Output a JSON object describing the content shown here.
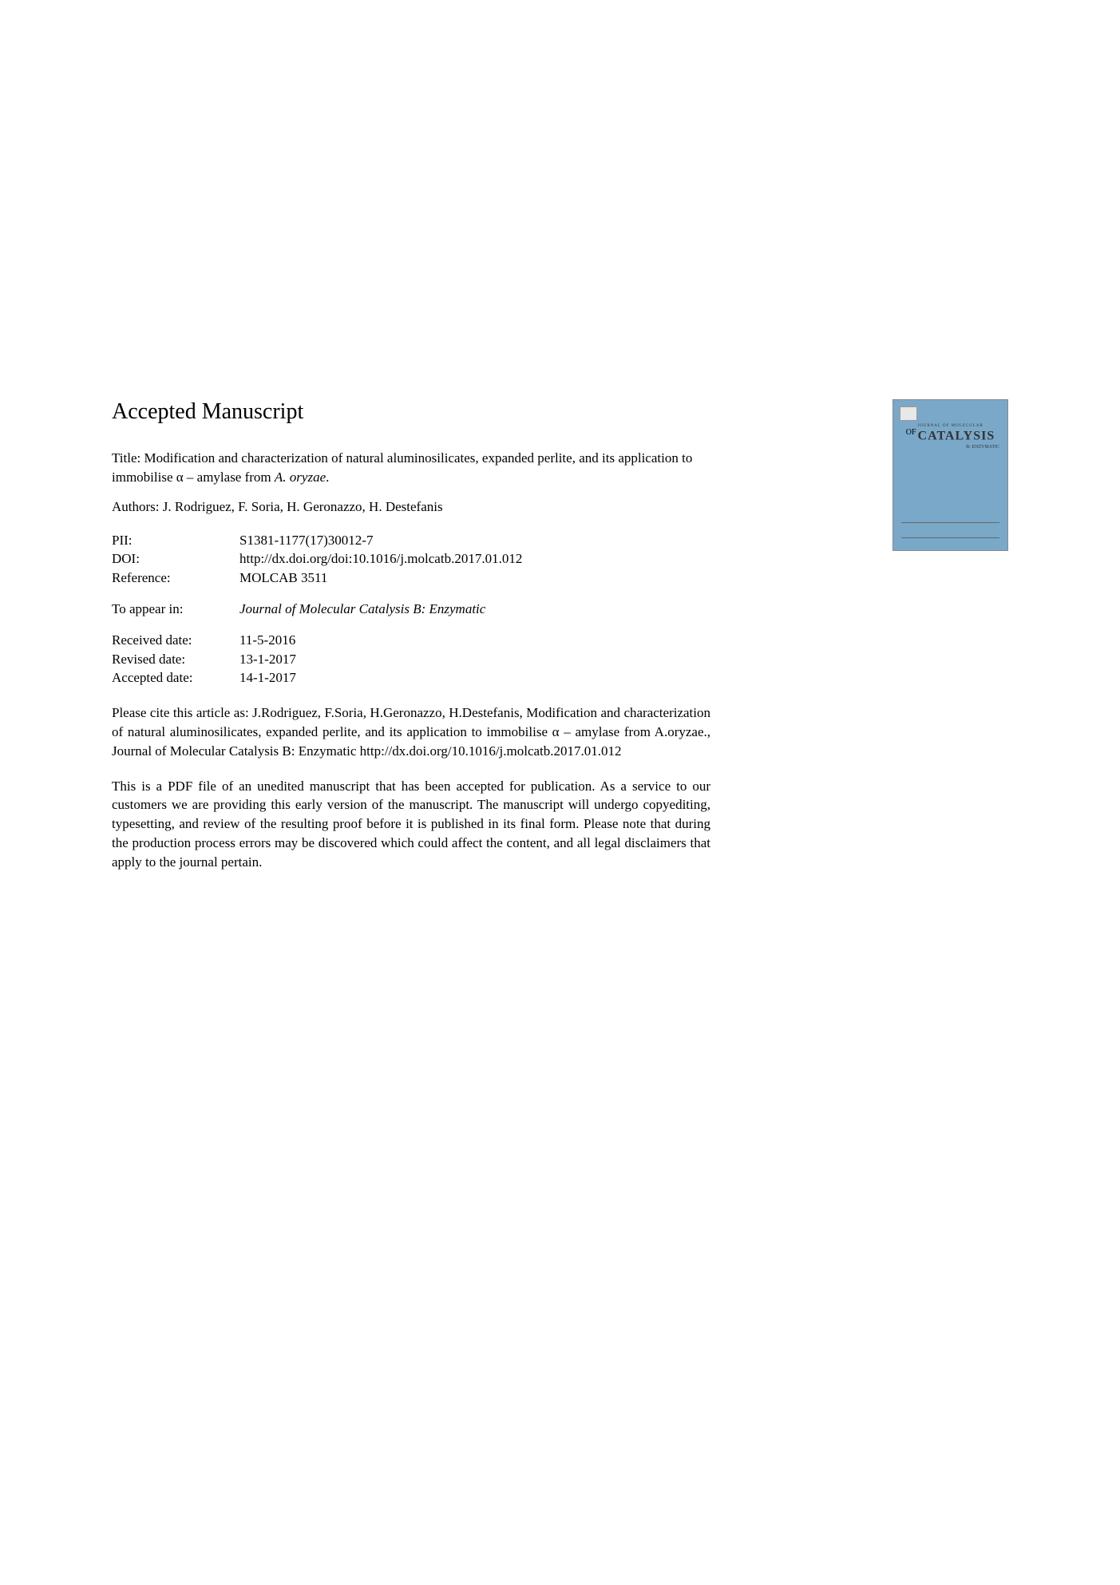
{
  "heading": "Accepted Manuscript",
  "title": {
    "prefix": "Title: Modification and characterization of natural aluminosilicates, expanded perlite, and its application to immobilise α – amylase from ",
    "species": "A. oryzae",
    "suffix": "."
  },
  "authors": "Authors: J. Rodriguez, F. Soria, H. Geronazzo, H. Destefanis",
  "metadata": {
    "pii": {
      "label": "PII:",
      "value": "S1381-1177(17)30012-7"
    },
    "doi": {
      "label": "DOI:",
      "value": "http://dx.doi.org/doi:10.1016/j.molcatb.2017.01.012"
    },
    "reference": {
      "label": "Reference:",
      "value": "MOLCAB 3511"
    },
    "appear": {
      "label": "To appear in:",
      "value": "Journal of Molecular Catalysis B: Enzymatic"
    },
    "received": {
      "label": "Received date:",
      "value": "11-5-2016"
    },
    "revised": {
      "label": "Revised date:",
      "value": "13-1-2017"
    },
    "accepted": {
      "label": "Accepted date:",
      "value": "14-1-2017"
    }
  },
  "citation": "Please cite this article as: J.Rodriguez, F.Soria, H.Geronazzo, H.Destefanis, Modification and characterization of natural aluminosilicates, expanded perlite, and its application to immobilise α – amylase from A.oryzae., Journal of Molecular Catalysis B: Enzymatic http://dx.doi.org/10.1016/j.molcatb.2017.01.012",
  "disclaimer": "This is a PDF file of an unedited manuscript that has been accepted for publication. As a service to our customers we are providing this early version of the manuscript. The manuscript will undergo copyediting, typesetting, and review of the resulting proof before it is published in its final form. Please note that during the production process errors may be discovered which could affect the content, and all legal disclaimers that apply to the journal pertain.",
  "cover": {
    "journal_small": "JOURNAL OF MOLECULAR",
    "of": "OF",
    "catalysis": "CATALYSIS",
    "enzymatic": "B: ENZYMATIC",
    "background_color": "#7aa8c9"
  }
}
